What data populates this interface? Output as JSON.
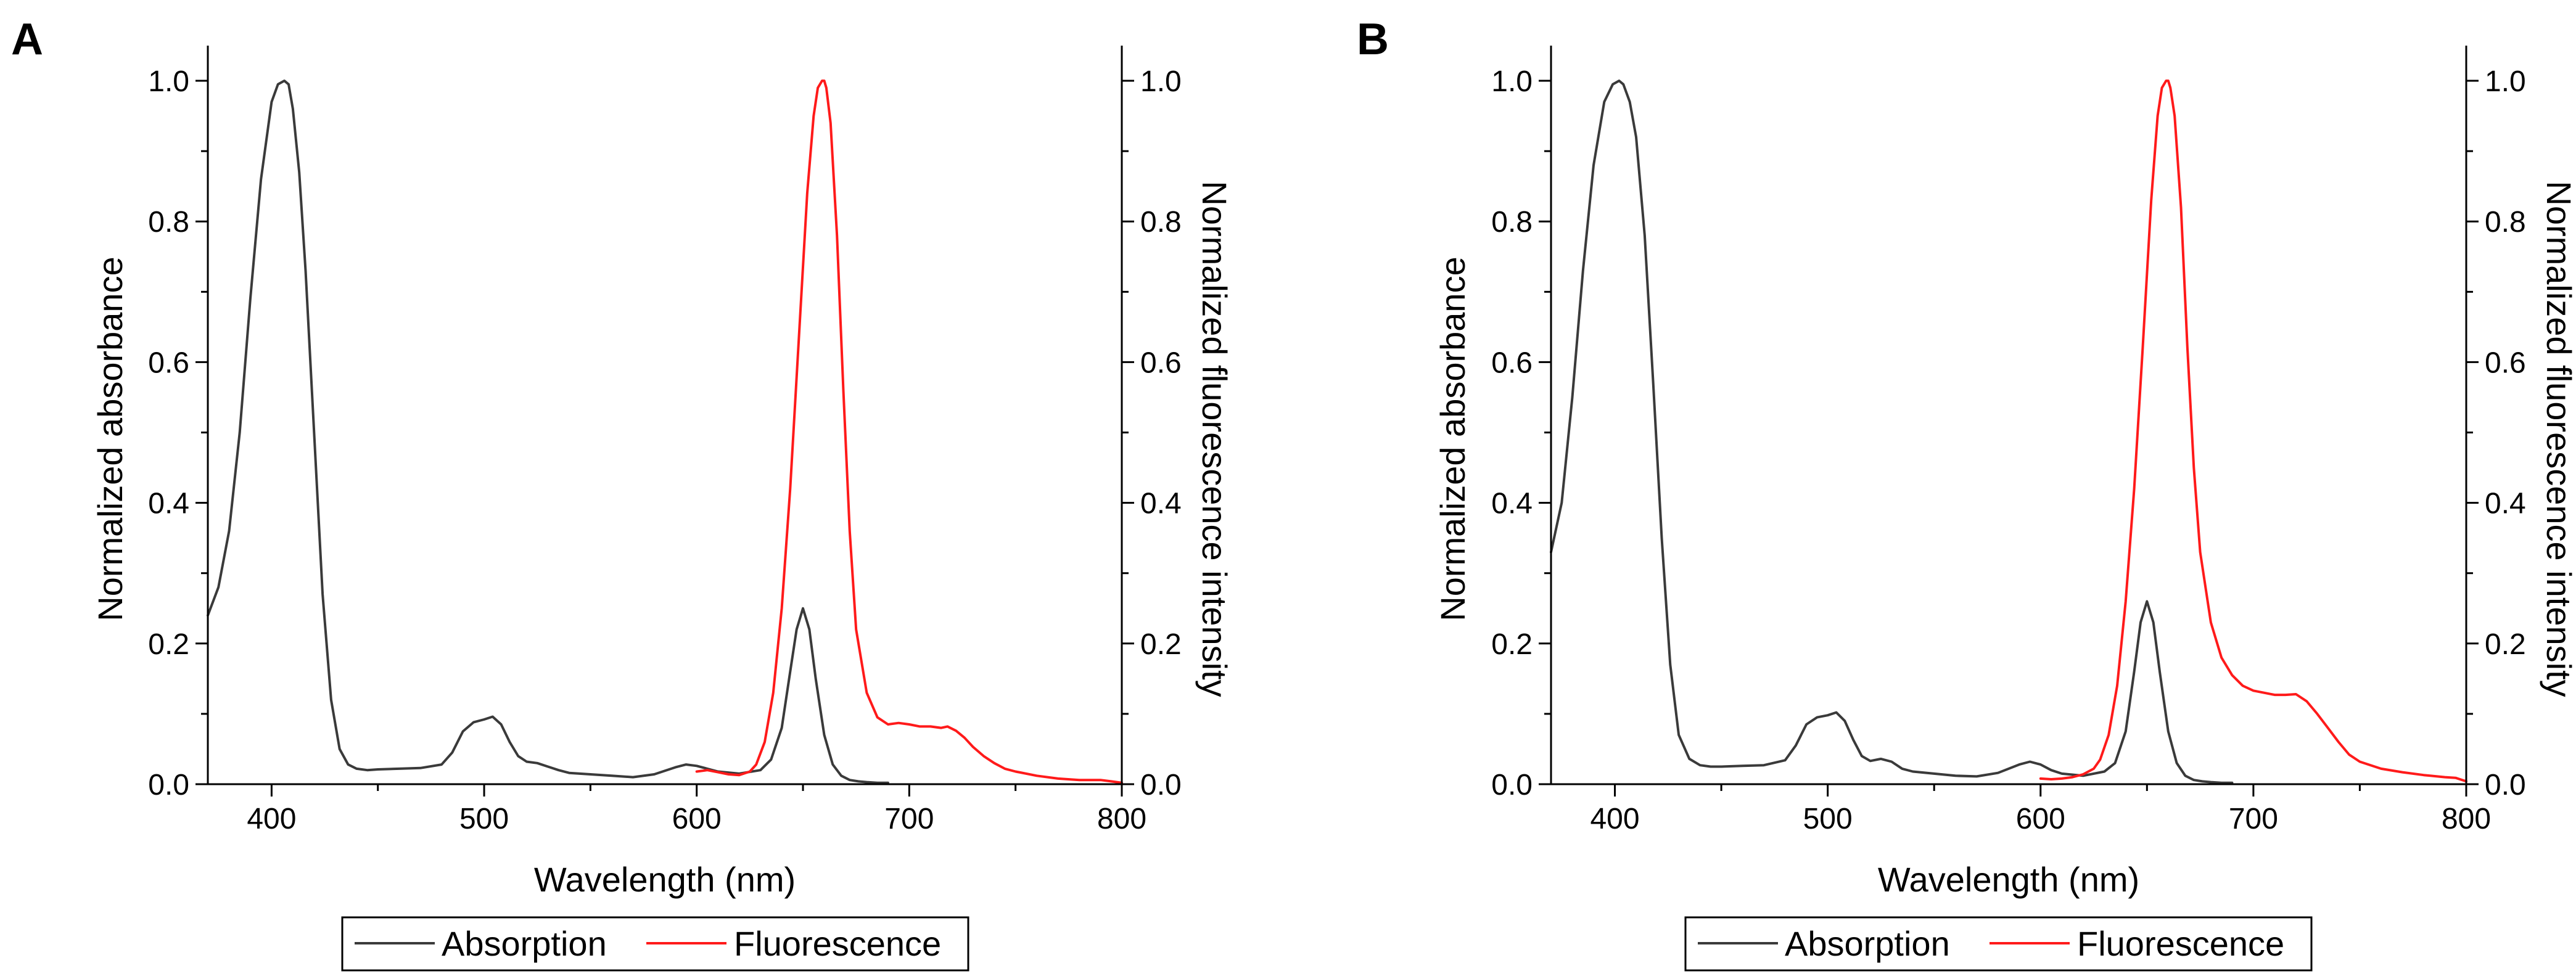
{
  "chart_data": [
    {
      "type": "line",
      "panel_label": "A",
      "xlabel": "Wavelength (nm)",
      "ylabel": "Normalized absorbance",
      "y2label": "Normalized fluorescence intensity",
      "xlim": [
        370,
        800
      ],
      "ylim": [
        0,
        1.05
      ],
      "y2lim": [
        0,
        1.05
      ],
      "xticks": [
        400,
        500,
        600,
        700,
        800
      ],
      "yticks": [
        0.0,
        0.2,
        0.4,
        0.6,
        0.8,
        1.0
      ],
      "y2ticks": [
        0.0,
        0.2,
        0.4,
        0.6,
        0.8,
        1.0
      ],
      "xtick_labels": [
        "400",
        "500",
        "600",
        "700",
        "800"
      ],
      "ytick_labels": [
        "0.0",
        "0.2",
        "0.4",
        "0.6",
        "0.8",
        "1.0"
      ],
      "y2tick_labels": [
        "0.0",
        "0.2",
        "0.4",
        "0.6",
        "0.8",
        "1.0"
      ],
      "grid": false,
      "legend_position": "bottom",
      "series": [
        {
          "name": "Absorption",
          "color": "#3a3a3a",
          "axis": "left",
          "x": [
            370,
            375,
            380,
            385,
            390,
            395,
            400,
            403,
            406,
            408,
            410,
            413,
            416,
            420,
            424,
            428,
            432,
            436,
            440,
            445,
            450,
            460,
            470,
            480,
            485,
            490,
            495,
            500,
            504,
            508,
            512,
            516,
            520,
            525,
            530,
            535,
            540,
            550,
            560,
            570,
            580,
            590,
            595,
            600,
            605,
            610,
            620,
            630,
            635,
            640,
            644,
            647,
            650,
            653,
            656,
            660,
            664,
            668,
            672,
            676,
            680,
            685,
            690
          ],
          "y": [
            0.24,
            0.28,
            0.36,
            0.5,
            0.69,
            0.86,
            0.97,
            0.995,
            1.0,
            0.995,
            0.96,
            0.87,
            0.73,
            0.5,
            0.27,
            0.12,
            0.05,
            0.028,
            0.022,
            0.02,
            0.021,
            0.022,
            0.023,
            0.028,
            0.045,
            0.075,
            0.088,
            0.092,
            0.096,
            0.085,
            0.06,
            0.04,
            0.032,
            0.03,
            0.025,
            0.02,
            0.016,
            0.014,
            0.012,
            0.01,
            0.014,
            0.024,
            0.028,
            0.026,
            0.022,
            0.018,
            0.015,
            0.02,
            0.035,
            0.08,
            0.16,
            0.22,
            0.25,
            0.22,
            0.15,
            0.07,
            0.028,
            0.012,
            0.006,
            0.004,
            0.003,
            0.002,
            0.002
          ]
        },
        {
          "name": "Fluorescence",
          "color": "#ff1a1a",
          "axis": "right",
          "x": [
            600,
            605,
            610,
            615,
            620,
            625,
            628,
            632,
            636,
            640,
            644,
            648,
            652,
            655,
            657,
            659,
            660,
            661,
            663,
            666,
            669,
            672,
            675,
            680,
            685,
            690,
            695,
            700,
            705,
            710,
            715,
            718,
            722,
            726,
            730,
            735,
            740,
            745,
            750,
            760,
            770,
            780,
            790,
            795,
            800
          ],
          "y": [
            0.018,
            0.02,
            0.017,
            0.014,
            0.013,
            0.018,
            0.028,
            0.06,
            0.13,
            0.25,
            0.42,
            0.63,
            0.84,
            0.95,
            0.99,
            1.0,
            1.0,
            0.99,
            0.94,
            0.78,
            0.56,
            0.36,
            0.22,
            0.13,
            0.095,
            0.085,
            0.087,
            0.085,
            0.082,
            0.082,
            0.08,
            0.082,
            0.076,
            0.066,
            0.053,
            0.04,
            0.03,
            0.022,
            0.018,
            0.012,
            0.008,
            0.006,
            0.006,
            0.004,
            0.002
          ]
        }
      ]
    },
    {
      "type": "line",
      "panel_label": "B",
      "xlabel": "Wavelength (nm)",
      "ylabel": "Normalized absorbance",
      "y2label": "Normalized fluorescence intensity",
      "xlim": [
        370,
        800
      ],
      "ylim": [
        0,
        1.05
      ],
      "y2lim": [
        0,
        1.05
      ],
      "xticks": [
        400,
        500,
        600,
        700,
        800
      ],
      "yticks": [
        0.0,
        0.2,
        0.4,
        0.6,
        0.8,
        1.0
      ],
      "y2ticks": [
        0.0,
        0.2,
        0.4,
        0.6,
        0.8,
        1.0
      ],
      "xtick_labels": [
        "400",
        "500",
        "600",
        "700",
        "800"
      ],
      "ytick_labels": [
        "0.0",
        "0.2",
        "0.4",
        "0.6",
        "0.8",
        "1.0"
      ],
      "y2tick_labels": [
        "0.0",
        "0.2",
        "0.4",
        "0.6",
        "0.8",
        "1.0"
      ],
      "grid": false,
      "legend_position": "bottom",
      "series": [
        {
          "name": "Absorption",
          "color": "#3a3a3a",
          "axis": "left",
          "x": [
            370,
            375,
            380,
            385,
            390,
            395,
            399,
            402,
            404,
            407,
            410,
            414,
            418,
            422,
            426,
            430,
            435,
            440,
            445,
            450,
            460,
            470,
            480,
            485,
            490,
            495,
            500,
            504,
            508,
            512,
            516,
            520,
            525,
            530,
            535,
            540,
            550,
            560,
            570,
            580,
            590,
            595,
            600,
            605,
            610,
            620,
            630,
            635,
            640,
            644,
            647,
            650,
            653,
            656,
            660,
            664,
            668,
            672,
            676,
            680,
            685,
            690
          ],
          "y": [
            0.33,
            0.4,
            0.55,
            0.73,
            0.88,
            0.97,
            0.995,
            1.0,
            0.995,
            0.97,
            0.92,
            0.78,
            0.57,
            0.35,
            0.17,
            0.07,
            0.036,
            0.027,
            0.025,
            0.025,
            0.026,
            0.027,
            0.034,
            0.055,
            0.085,
            0.095,
            0.098,
            0.102,
            0.09,
            0.063,
            0.04,
            0.033,
            0.036,
            0.032,
            0.022,
            0.018,
            0.015,
            0.012,
            0.011,
            0.016,
            0.028,
            0.032,
            0.028,
            0.02,
            0.015,
            0.012,
            0.018,
            0.03,
            0.075,
            0.16,
            0.23,
            0.26,
            0.23,
            0.16,
            0.075,
            0.03,
            0.012,
            0.006,
            0.004,
            0.003,
            0.002,
            0.002
          ]
        },
        {
          "name": "Fluorescence",
          "color": "#ff1a1a",
          "axis": "right",
          "x": [
            600,
            605,
            610,
            615,
            620,
            625,
            628,
            632,
            636,
            640,
            644,
            648,
            652,
            655,
            657,
            659,
            660,
            661,
            663,
            666,
            669,
            672,
            675,
            680,
            685,
            690,
            695,
            700,
            705,
            710,
            715,
            720,
            725,
            730,
            735,
            740,
            745,
            750,
            760,
            770,
            780,
            790,
            795,
            800
          ],
          "y": [
            0.008,
            0.007,
            0.008,
            0.01,
            0.014,
            0.022,
            0.035,
            0.07,
            0.14,
            0.26,
            0.42,
            0.62,
            0.83,
            0.95,
            0.99,
            1.0,
            1.0,
            0.99,
            0.95,
            0.82,
            0.62,
            0.45,
            0.33,
            0.23,
            0.18,
            0.155,
            0.14,
            0.133,
            0.13,
            0.127,
            0.127,
            0.128,
            0.118,
            0.1,
            0.08,
            0.06,
            0.042,
            0.032,
            0.022,
            0.017,
            0.013,
            0.01,
            0.009,
            0.004
          ]
        }
      ]
    }
  ]
}
